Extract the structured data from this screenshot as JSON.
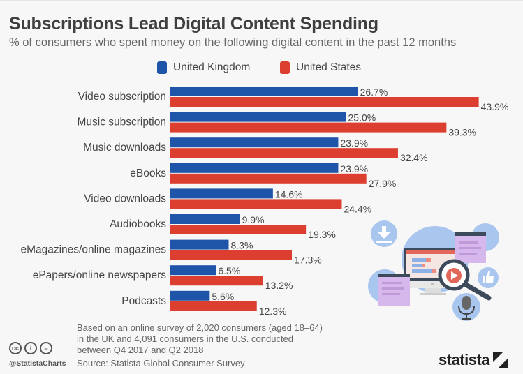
{
  "header": {
    "title": "Subscriptions Lead Digital Content Spending",
    "subtitle": "% of consumers who spent money on the following digital content in the past 12 months"
  },
  "chart_data": {
    "type": "bar",
    "orientation": "horizontal",
    "title": "Subscriptions Lead Digital Content Spending",
    "subtitle": "% of consumers who spent money on the following digital content in the past 12 months",
    "xlabel": "",
    "ylabel": "",
    "unit": "%",
    "xlim": [
      0,
      50
    ],
    "grid": false,
    "legend_position": "top-center",
    "categories": [
      "Video subscription",
      "Music subscription",
      "Music downloads",
      "eBooks",
      "Video downloads",
      "Audiobooks",
      "eMagazines/online magazines",
      "ePapers/online newspapers",
      "Podcasts"
    ],
    "series": [
      {
        "name": "United Kingdom",
        "color": "#1f55a8",
        "values": [
          26.7,
          25.0,
          23.9,
          23.9,
          14.6,
          9.9,
          8.3,
          6.5,
          5.6
        ],
        "labels": [
          "26.7%",
          "25.0%",
          "23.9%",
          "23.9%",
          "14.6%",
          "9.9%",
          "8.3%",
          "6.5%",
          "5.6%"
        ]
      },
      {
        "name": "United States",
        "color": "#dc3f2f",
        "values": [
          43.9,
          39.3,
          32.4,
          27.9,
          24.4,
          19.3,
          17.3,
          13.2,
          12.3
        ],
        "labels": [
          "43.9%",
          "39.3%",
          "32.4%",
          "27.9%",
          "24.4%",
          "19.3%",
          "17.3%",
          "13.2%",
          "12.3%"
        ]
      }
    ]
  },
  "footer": {
    "note_lines": [
      "Based on an online survey of 2,020 consumers (aged 18–64)",
      "in the UK and 4,091 consumers in the U.S. conducted",
      "between Q4 2017 and Q2 2018"
    ],
    "source": "Source: Statista Global Consumer Survey",
    "handle": "@StatistaCharts",
    "brand": "statista",
    "license_icons": [
      "cc-icon",
      "attribution-icon",
      "no-derivatives-icon"
    ],
    "license_glyphs": [
      "cc",
      "i",
      "="
    ]
  }
}
